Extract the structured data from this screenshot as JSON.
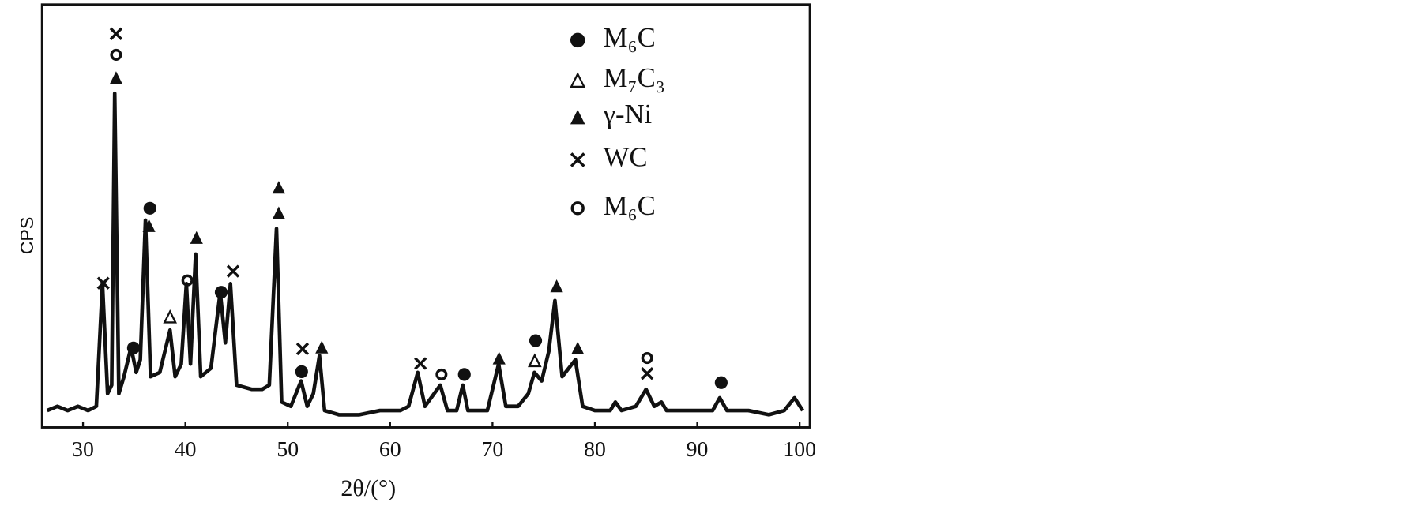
{
  "chart_data": {
    "type": "line",
    "xlabel": "2θ/(°)",
    "ylabel": "CPS",
    "x": [
      26.5,
      27.5,
      28.5,
      29.5,
      30.5,
      31.3,
      31.9,
      32.4,
      32.8,
      33.1,
      33.5,
      34.0,
      34.7,
      35.2,
      35.6,
      36.1,
      36.6,
      37.5,
      38.5,
      39.0,
      39.6,
      40.1,
      40.5,
      41.0,
      41.5,
      42.5,
      43.4,
      43.9,
      44.4,
      45.0,
      46.5,
      47.5,
      48.2,
      48.9,
      49.4,
      50.3,
      51.3,
      51.9,
      52.5,
      53.1,
      53.6,
      55,
      57,
      59,
      61,
      61.8,
      62.7,
      63.4,
      64.9,
      65.6,
      66.5,
      67.1,
      67.6,
      69.5,
      70.6,
      71.3,
      72.5,
      73.5,
      74.1,
      74.8,
      75.5,
      76.1,
      76.8,
      78.1,
      78.8,
      80,
      81.5,
      82,
      82.6,
      84,
      85.0,
      85.8,
      86.5,
      87,
      89,
      91.5,
      92.2,
      92.9,
      95,
      97,
      98.5,
      99.5,
      100.3
    ],
    "y": [
      4,
      5,
      4,
      5,
      4,
      5,
      34,
      8,
      10,
      79,
      8,
      12,
      19,
      13,
      16,
      49,
      12,
      13,
      23,
      12,
      15,
      34,
      15,
      41,
      12,
      14,
      32,
      20,
      34,
      10,
      9,
      9,
      10,
      47,
      6,
      5,
      11,
      5,
      8,
      17,
      4,
      3,
      3,
      4,
      4,
      5,
      13,
      5,
      10,
      4,
      4,
      10,
      4,
      4,
      15,
      5,
      5,
      8,
      13,
      11,
      18,
      30,
      12,
      16,
      5,
      4,
      4,
      6,
      4,
      5,
      9,
      5,
      6,
      4,
      4,
      4,
      7,
      4,
      4,
      3,
      4,
      7,
      4
    ],
    "color": "#111111",
    "xlim": [
      26,
      101
    ],
    "ylim": [
      0,
      100
    ],
    "xticks": [
      30,
      40,
      50,
      60,
      70,
      80,
      90,
      100
    ],
    "legend": [
      "M₆C",
      "M₇C₃",
      "γ-Ni",
      "WC",
      "M₆C"
    ]
  }
}
